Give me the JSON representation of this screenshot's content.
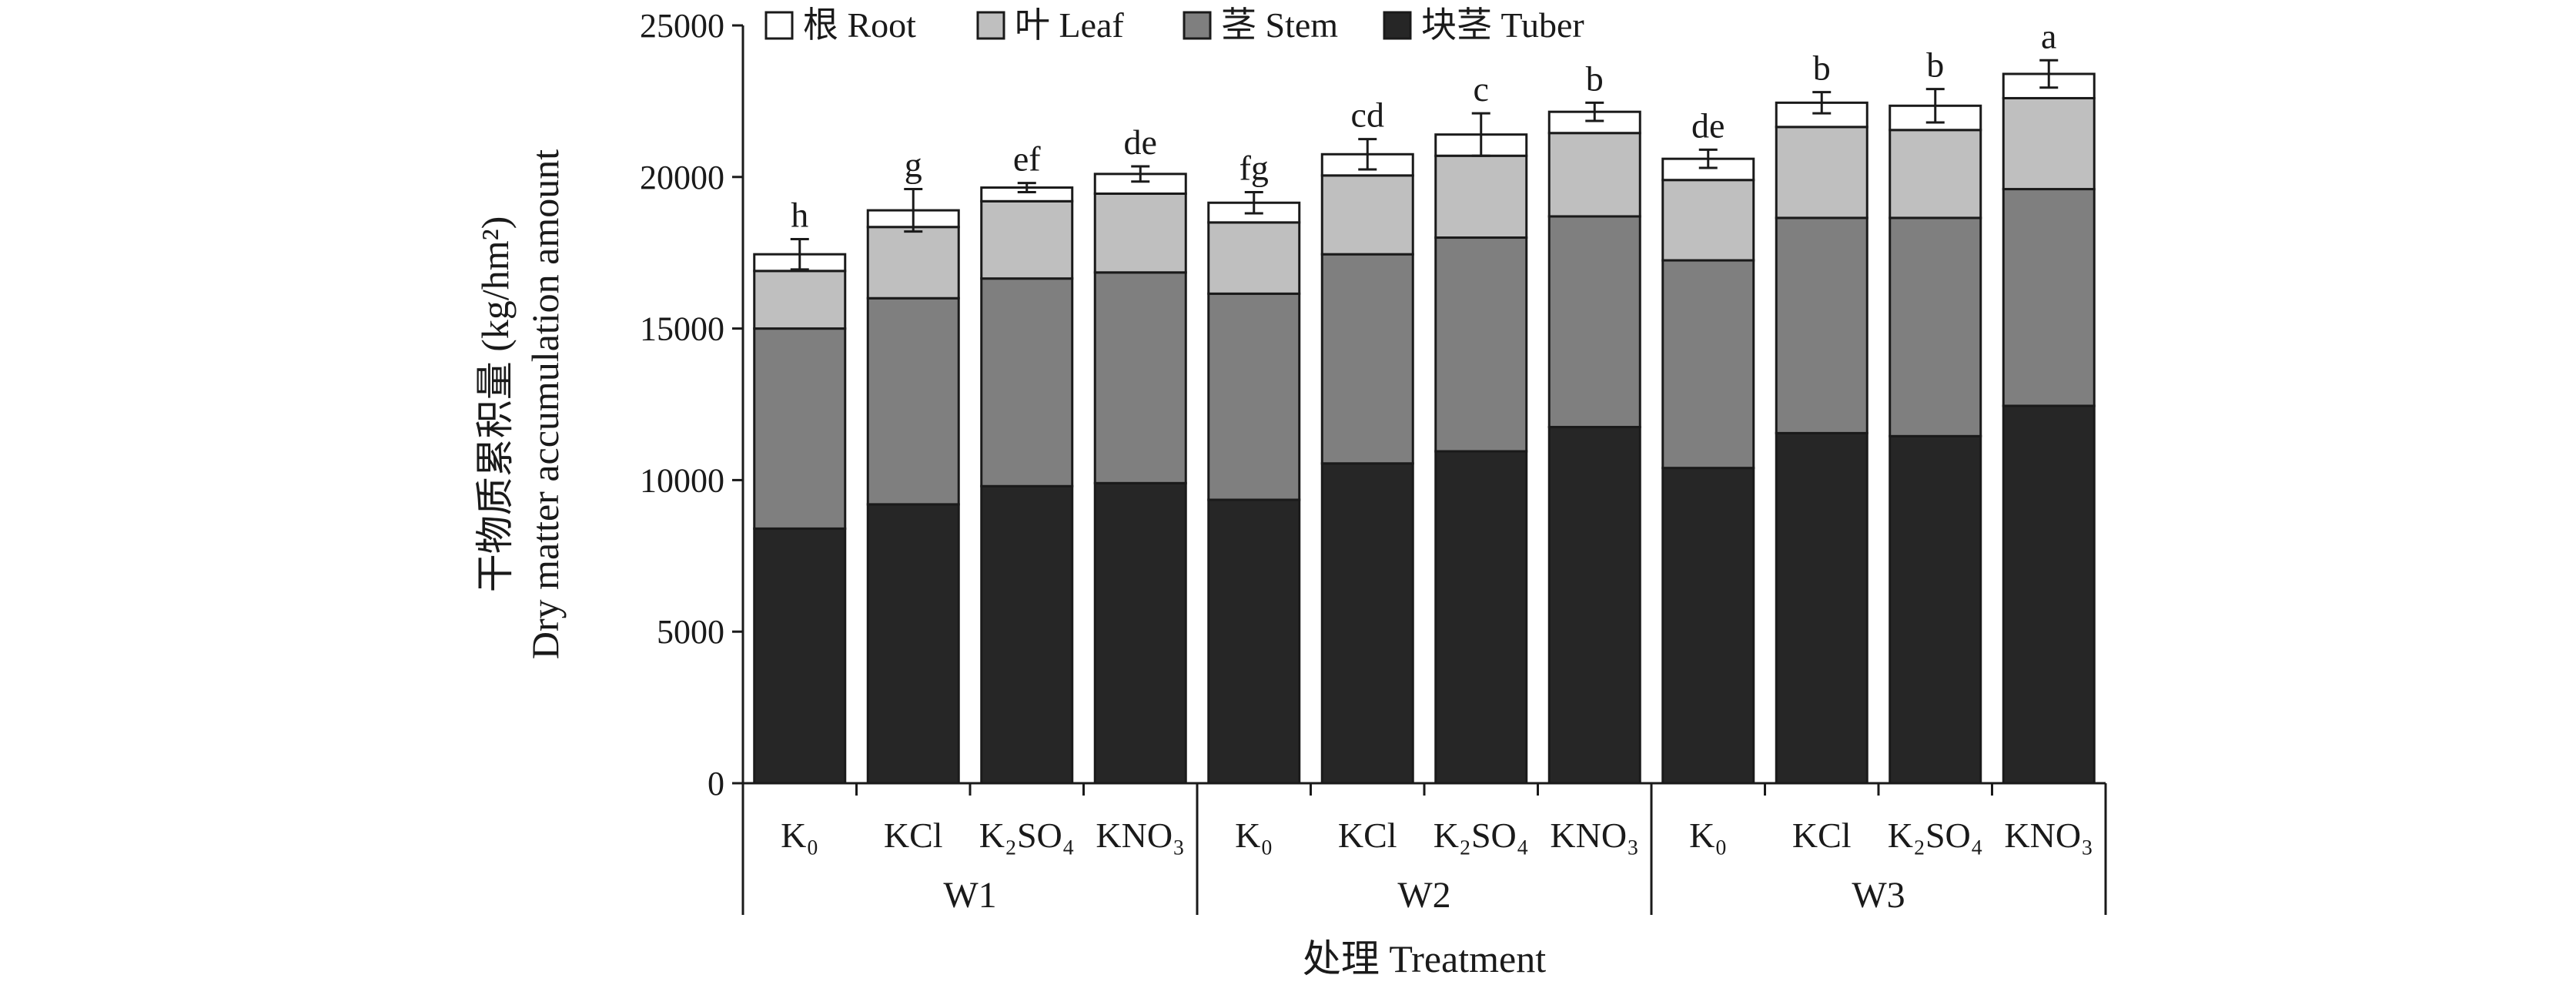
{
  "chart_data": {
    "type": "bar",
    "stacked": true,
    "categories": [
      "K₀",
      "KCl",
      "K₂SO₄",
      "KNO₃",
      "K₀",
      "KCl",
      "K₂SO₄",
      "KNO₃",
      "K₀",
      "KCl",
      "K₂SO₄",
      "KNO₃"
    ],
    "groups": [
      {
        "label": "W1",
        "count": 4
      },
      {
        "label": "W2",
        "count": 4
      },
      {
        "label": "W3",
        "count": 4
      }
    ],
    "series": [
      {
        "name": "块茎 Tuber",
        "color": "#262626",
        "values": [
          8400,
          9200,
          9800,
          9900,
          9350,
          10550,
          10950,
          11750,
          10400,
          11550,
          11450,
          12450
        ]
      },
      {
        "name": "茎 Stem",
        "color": "#7f7f7f",
        "values": [
          6600,
          6800,
          6850,
          6950,
          6800,
          6900,
          7050,
          6950,
          6850,
          7100,
          7200,
          7150
        ]
      },
      {
        "name": "叶 Leaf",
        "color": "#bfbfbf",
        "values": [
          1900,
          2350,
          2550,
          2600,
          2350,
          2600,
          2700,
          2750,
          2650,
          3000,
          2900,
          3000
        ]
      },
      {
        "name": "根 Root",
        "color": "#ffffff",
        "values": [
          550,
          550,
          450,
          650,
          650,
          700,
          700,
          700,
          700,
          800,
          800,
          800
        ]
      }
    ],
    "error_bars": [
      500,
      700,
      150,
      250,
      350,
      500,
      700,
      300,
      300,
      350,
      550,
      450
    ],
    "significance": [
      "h",
      "g",
      "ef",
      "de",
      "fg",
      "cd",
      "c",
      "b",
      "de",
      "b",
      "b",
      "a"
    ],
    "legend_order": [
      "根 Root",
      "叶 Leaf",
      "茎 Stem",
      "块茎 Tuber"
    ],
    "legend_position": "top",
    "ylim": [
      0,
      25000
    ],
    "yticks": [
      "0",
      "5000",
      "10000",
      "15000",
      "20000",
      "25000"
    ],
    "ylabel_line1": "干物质累积量 (kg/hm²)",
    "ylabel_line2": "Dry matter accumulation amount",
    "xlabel": "处理 Treatment",
    "grid": false
  }
}
